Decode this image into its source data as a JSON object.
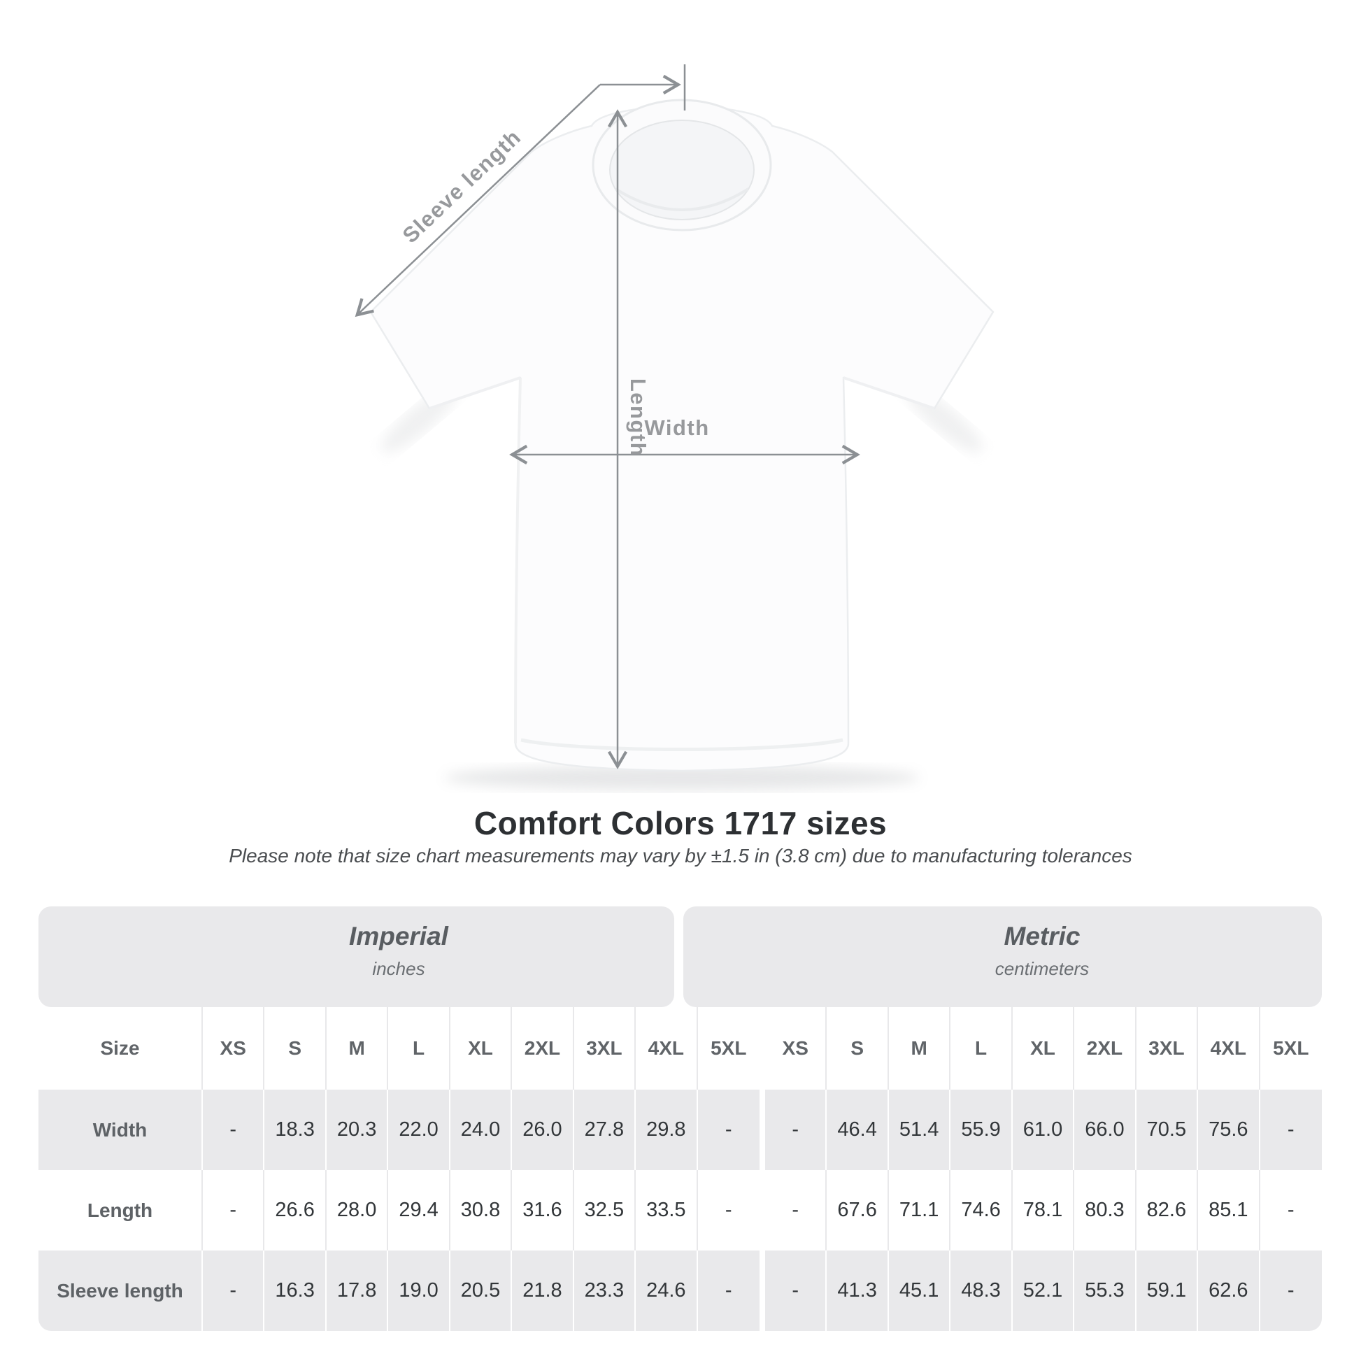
{
  "diagram": {
    "sleeve_length_label": "Sleeve length",
    "length_label": "Length",
    "width_label": "Width"
  },
  "heading": {
    "title": "Comfort Colors 1717 sizes",
    "subtitle": "Please note that size chart measurements may vary by ±1.5 in (3.8 cm) due to manufacturing tolerances"
  },
  "chart_data": {
    "type": "table",
    "title": "Comfort Colors 1717 sizes",
    "size_label": "Size",
    "sizes": [
      "XS",
      "S",
      "M",
      "L",
      "XL",
      "2XL",
      "3XL",
      "4XL",
      "5XL"
    ],
    "col_groups": [
      {
        "label": "Imperial",
        "unit": "inches"
      },
      {
        "label": "Metric",
        "unit": "centimeters"
      }
    ],
    "rows": [
      {
        "label": "Width",
        "imperial": [
          "-",
          "18.3",
          "20.3",
          "22.0",
          "24.0",
          "26.0",
          "27.8",
          "29.8",
          "-"
        ],
        "metric": [
          "-",
          "46.4",
          "51.4",
          "55.9",
          "61.0",
          "66.0",
          "70.5",
          "75.6",
          "-"
        ]
      },
      {
        "label": "Length",
        "imperial": [
          "-",
          "26.6",
          "28.0",
          "29.4",
          "30.8",
          "31.6",
          "32.5",
          "33.5",
          "-"
        ],
        "metric": [
          "-",
          "67.6",
          "71.1",
          "74.6",
          "78.1",
          "80.3",
          "82.6",
          "85.1",
          "-"
        ]
      },
      {
        "label": "Sleeve length",
        "imperial": [
          "-",
          "16.3",
          "17.8",
          "19.0",
          "20.5",
          "21.8",
          "23.3",
          "24.6",
          "-"
        ],
        "metric": [
          "-",
          "41.3",
          "45.1",
          "48.3",
          "52.1",
          "55.3",
          "59.1",
          "62.6",
          "-"
        ]
      }
    ]
  },
  "colors": {
    "band_gray": "#e9e9eb",
    "annotation_gray": "#8c9094",
    "value_text": "#323639",
    "title_text": "#2d3033"
  }
}
